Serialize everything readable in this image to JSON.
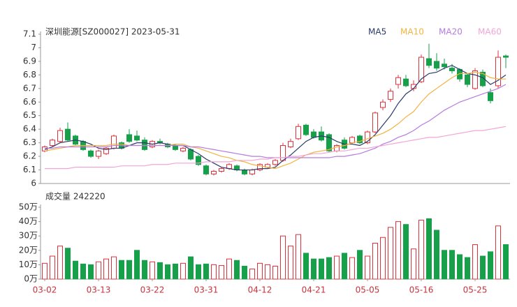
{
  "chart_data": [
    {
      "type": "candlestick",
      "title": "深圳能源[SZ000027] 2023-05-31",
      "up_color": "#e0303a",
      "down_color": "#17a04a",
      "open": [
        6.24,
        6.28,
        6.31,
        6.4,
        6.35,
        6.31,
        6.24,
        6.2,
        6.22,
        6.26,
        6.3,
        6.36,
        6.35,
        6.32,
        6.27,
        6.31,
        6.29,
        6.28,
        6.24,
        6.25,
        6.2,
        6.13,
        6.07,
        6.09,
        6.11,
        6.13,
        6.1,
        6.07,
        6.1,
        6.12,
        6.14,
        6.17,
        6.27,
        6.33,
        6.43,
        6.38,
        6.38,
        6.36,
        6.24,
        6.32,
        6.3,
        6.35,
        6.3,
        6.38,
        6.56,
        6.62,
        6.73,
        6.77,
        6.7,
        6.75,
        6.92,
        6.9,
        6.88,
        6.85,
        6.84,
        6.8,
        6.7,
        6.82,
        6.67,
        6.72,
        6.94
      ],
      "high": [
        6.28,
        6.33,
        6.41,
        6.45,
        6.36,
        6.32,
        6.25,
        6.25,
        6.27,
        6.36,
        6.31,
        6.4,
        6.39,
        6.34,
        6.32,
        6.33,
        6.3,
        6.29,
        6.27,
        6.26,
        6.21,
        6.14,
        6.1,
        6.12,
        6.15,
        6.14,
        6.11,
        6.11,
        6.15,
        6.15,
        6.18,
        6.3,
        6.33,
        6.44,
        6.44,
        6.4,
        6.42,
        6.37,
        6.29,
        6.34,
        6.35,
        6.36,
        6.39,
        6.53,
        6.62,
        6.7,
        6.8,
        6.8,
        6.76,
        6.95,
        7.03,
        6.96,
        6.92,
        6.88,
        6.85,
        6.81,
        6.85,
        6.84,
        6.7,
        6.98,
        6.95
      ],
      "low": [
        6.23,
        6.27,
        6.3,
        6.31,
        6.28,
        6.24,
        6.19,
        6.18,
        6.21,
        6.25,
        6.25,
        6.3,
        6.31,
        6.24,
        6.26,
        6.29,
        6.26,
        6.24,
        6.23,
        6.17,
        6.13,
        6.06,
        6.06,
        6.08,
        6.1,
        6.09,
        6.06,
        6.06,
        6.09,
        6.11,
        6.13,
        6.16,
        6.26,
        6.32,
        6.35,
        6.33,
        6.31,
        6.23,
        6.23,
        6.25,
        6.29,
        6.29,
        6.29,
        6.37,
        6.54,
        6.6,
        6.7,
        6.71,
        6.68,
        6.74,
        6.85,
        6.83,
        6.84,
        6.81,
        6.75,
        6.71,
        6.69,
        6.71,
        6.59,
        6.7,
        6.85
      ],
      "close": [
        6.27,
        6.32,
        6.39,
        6.32,
        6.29,
        6.25,
        6.2,
        6.24,
        6.26,
        6.35,
        6.26,
        6.31,
        6.32,
        6.25,
        6.31,
        6.3,
        6.27,
        6.25,
        6.26,
        6.18,
        6.14,
        6.07,
        6.09,
        6.11,
        6.14,
        6.1,
        6.07,
        6.1,
        6.14,
        6.14,
        6.17,
        6.28,
        6.31,
        6.42,
        6.36,
        6.34,
        6.32,
        6.24,
        6.28,
        6.26,
        6.34,
        6.3,
        6.38,
        6.52,
        6.6,
        6.68,
        6.78,
        6.72,
        6.73,
        6.93,
        6.87,
        6.85,
        6.86,
        6.83,
        6.77,
        6.73,
        6.83,
        6.72,
        6.61,
        6.93,
        6.93
      ],
      "series": [
        {
          "name": "MA5",
          "color": "#2b3a6b",
          "values": [
            6.25,
            6.27,
            6.3,
            6.31,
            6.32,
            6.31,
            6.29,
            6.26,
            6.25,
            6.26,
            6.26,
            6.28,
            6.3,
            6.3,
            6.29,
            6.3,
            6.29,
            6.28,
            6.28,
            6.25,
            6.22,
            6.18,
            6.15,
            6.12,
            6.11,
            6.1,
            6.1,
            6.1,
            6.11,
            6.11,
            6.12,
            6.17,
            6.21,
            6.26,
            6.31,
            6.34,
            6.35,
            6.34,
            6.31,
            6.29,
            6.29,
            6.28,
            6.31,
            6.36,
            6.43,
            6.5,
            6.59,
            6.66,
            6.7,
            6.77,
            6.81,
            6.82,
            6.85,
            6.87,
            6.84,
            6.81,
            6.8,
            6.78,
            6.73,
            6.76,
            6.8
          ]
        },
        {
          "name": "MA10",
          "color": "#f2b440",
          "values": [
            6.24,
            6.25,
            6.26,
            6.27,
            6.28,
            6.28,
            6.28,
            6.28,
            6.28,
            6.29,
            6.29,
            6.28,
            6.28,
            6.28,
            6.28,
            6.28,
            6.28,
            6.29,
            6.29,
            6.27,
            6.26,
            6.24,
            6.22,
            6.2,
            6.19,
            6.17,
            6.16,
            6.14,
            6.13,
            6.12,
            6.11,
            6.13,
            6.15,
            6.18,
            6.21,
            6.23,
            6.24,
            6.25,
            6.27,
            6.28,
            6.3,
            6.31,
            6.33,
            6.35,
            6.37,
            6.4,
            6.44,
            6.49,
            6.53,
            6.6,
            6.66,
            6.7,
            6.74,
            6.78,
            6.81,
            6.81,
            6.82,
            6.81,
            6.78,
            6.77,
            6.77
          ]
        },
        {
          "name": "MA20",
          "color": "#b57be0",
          "values": [
            6.26,
            6.26,
            6.27,
            6.27,
            6.27,
            6.27,
            6.27,
            6.27,
            6.27,
            6.28,
            6.28,
            6.28,
            6.28,
            6.28,
            6.28,
            6.28,
            6.28,
            6.28,
            6.28,
            6.27,
            6.27,
            6.26,
            6.25,
            6.24,
            6.23,
            6.22,
            6.21,
            6.2,
            6.2,
            6.19,
            6.19,
            6.19,
            6.19,
            6.19,
            6.19,
            6.19,
            6.19,
            6.19,
            6.2,
            6.2,
            6.21,
            6.22,
            6.24,
            6.26,
            6.29,
            6.31,
            6.34,
            6.36,
            6.39,
            6.43,
            6.46,
            6.5,
            6.54,
            6.57,
            6.6,
            6.62,
            6.64,
            6.66,
            6.68,
            6.7,
            6.73
          ]
        },
        {
          "name": "MA60",
          "color": "#f2a6d6",
          "values": [
            6.11,
            6.11,
            6.11,
            6.11,
            6.12,
            6.12,
            6.12,
            6.12,
            6.12,
            6.12,
            6.13,
            6.13,
            6.13,
            6.13,
            6.14,
            6.14,
            6.14,
            6.15,
            6.15,
            6.15,
            6.15,
            6.16,
            6.16,
            6.16,
            6.16,
            6.17,
            6.17,
            6.17,
            6.18,
            6.18,
            6.19,
            6.19,
            6.2,
            6.2,
            6.21,
            6.22,
            6.22,
            6.23,
            6.24,
            6.24,
            6.25,
            6.26,
            6.26,
            6.27,
            6.28,
            6.29,
            6.3,
            6.31,
            6.32,
            6.33,
            6.34,
            6.34,
            6.35,
            6.36,
            6.37,
            6.38,
            6.39,
            6.39,
            6.4,
            6.41,
            6.42
          ]
        }
      ],
      "ylim": [
        6,
        7.1
      ],
      "yticks": [
        6,
        6.1,
        6.2,
        6.3,
        6.4,
        6.5,
        6.6,
        6.7,
        6.8,
        6.9,
        7,
        7.1
      ]
    },
    {
      "type": "bar",
      "title": "成交量 242220",
      "categories": [
        "03-02",
        null,
        null,
        null,
        null,
        null,
        null,
        "03-13",
        null,
        null,
        null,
        null,
        null,
        null,
        "03-22",
        null,
        null,
        null,
        null,
        null,
        null,
        "03-31",
        null,
        null,
        null,
        null,
        null,
        null,
        "04-12",
        null,
        null,
        null,
        null,
        null,
        null,
        "04-21",
        null,
        null,
        null,
        null,
        null,
        null,
        "05-05",
        null,
        null,
        null,
        null,
        null,
        null,
        "05-16",
        null,
        null,
        null,
        null,
        null,
        null,
        "05-25",
        null,
        null,
        null,
        null
      ],
      "values": [
        11,
        16,
        23,
        21.5,
        12.5,
        10.5,
        10,
        12,
        14,
        15.5,
        13,
        13,
        20,
        13,
        12,
        11.5,
        10,
        10.5,
        11,
        15.5,
        10,
        10.5,
        10,
        9.5,
        14,
        13,
        9,
        7,
        11,
        10,
        9,
        30,
        23,
        31,
        18,
        14,
        14,
        15,
        16,
        18,
        15,
        20,
        16,
        25,
        29,
        36,
        40,
        38,
        21,
        41,
        42,
        34,
        20,
        20,
        17,
        15,
        24,
        16,
        19,
        37,
        24
      ],
      "ylim": [
        0,
        50
      ],
      "yticks": [
        {
          "value": 0,
          "label": "0万"
        },
        {
          "value": 10,
          "label": "10万"
        },
        {
          "value": 20,
          "label": "20万"
        },
        {
          "value": 30,
          "label": "30万"
        },
        {
          "value": 40,
          "label": "40万"
        },
        {
          "value": 50,
          "label": "50万"
        }
      ]
    }
  ]
}
